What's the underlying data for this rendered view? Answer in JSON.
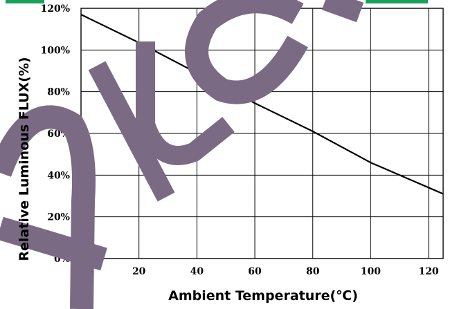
{
  "chart_data": {
    "type": "line",
    "xlabel": "Ambient Temperature(℃)",
    "ylabel": "Relative Luminous FLUX(%)",
    "xlim": [
      0,
      125
    ],
    "ylim": [
      0,
      120
    ],
    "x_ticks": [
      0,
      20,
      40,
      60,
      80,
      100,
      120
    ],
    "y_ticks": [
      0,
      20,
      40,
      60,
      80,
      100,
      120
    ],
    "y_tick_labels": [
      "0%",
      "20%",
      "40%",
      "60%",
      "80%",
      "100%",
      "120%"
    ],
    "grid": true,
    "series": [
      {
        "x": [
          0,
          20,
          40,
          60,
          80,
          100,
          105,
          125
        ],
        "values": [
          117,
          103.5,
          89,
          74.5,
          61,
          46,
          43,
          31
        ]
      }
    ]
  },
  "colors": {
    "watermark": "#7a6a84",
    "line": "#000000",
    "top_strip": "#1aa05a"
  }
}
